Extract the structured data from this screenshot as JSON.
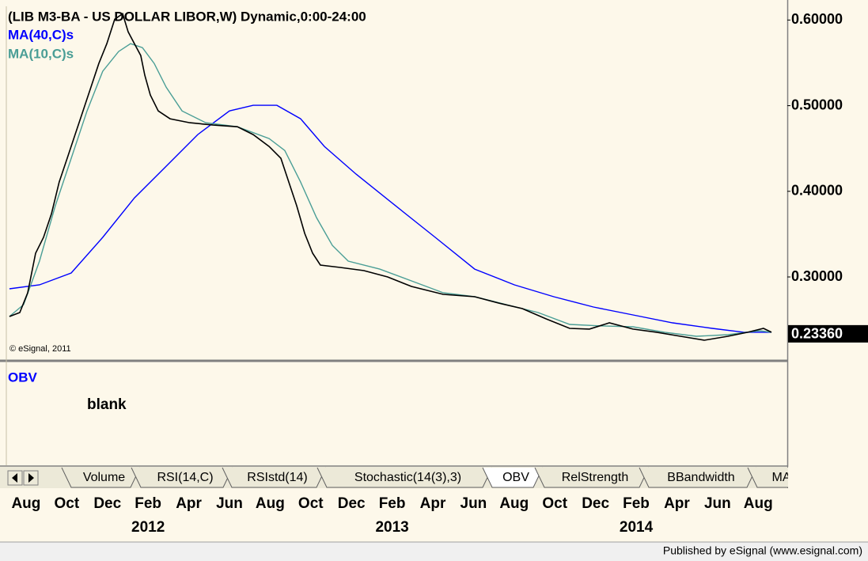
{
  "chart_data": {
    "type": "line",
    "title": "(LIB M3-BA - US DOLLAR LIBOR,W) Dynamic,0:00-24:00",
    "copyright": "© eSignal, 2011",
    "xlim": [
      -0.97,
      37.43
    ],
    "ylim": [
      0.203,
      0.616
    ],
    "xticks": [
      {
        "value": 0,
        "label": "Aug"
      },
      {
        "value": 2,
        "label": "Oct"
      },
      {
        "value": 4,
        "label": "Dec"
      },
      {
        "value": 6,
        "label": "Feb"
      },
      {
        "value": 8,
        "label": "Apr"
      },
      {
        "value": 10,
        "label": "Jun"
      },
      {
        "value": 12,
        "label": "Aug"
      },
      {
        "value": 14,
        "label": "Oct"
      },
      {
        "value": 16,
        "label": "Dec"
      },
      {
        "value": 18,
        "label": "Feb"
      },
      {
        "value": 20,
        "label": "Apr"
      },
      {
        "value": 22,
        "label": "Jun"
      },
      {
        "value": 24,
        "label": "Aug"
      },
      {
        "value": 26,
        "label": "Oct"
      },
      {
        "value": 28,
        "label": "Dec"
      },
      {
        "value": 30,
        "label": "Feb"
      },
      {
        "value": 32,
        "label": "Apr"
      },
      {
        "value": 34,
        "label": "Jun"
      },
      {
        "value": 36,
        "label": "Aug"
      }
    ],
    "year_ticks": [
      {
        "value": 6,
        "label": "2012"
      },
      {
        "value": 18,
        "label": "2013"
      },
      {
        "value": 30,
        "label": "2014"
      }
    ],
    "yticks": [
      {
        "value": 0.6,
        "label": "0.60000"
      },
      {
        "value": 0.5,
        "label": "0.50000"
      },
      {
        "value": 0.4,
        "label": "0.40000"
      },
      {
        "value": 0.3,
        "label": "0.30000"
      }
    ],
    "last_value": {
      "value": 0.2336,
      "label": "0.23360"
    },
    "grid": false,
    "series": [
      {
        "color": "#000000",
        "x": [
          -0.82,
          -0.31,
          0.08,
          0.47,
          0.86,
          1.25,
          1.63,
          2.02,
          2.41,
          2.8,
          3.19,
          3.58,
          3.97,
          4.36,
          4.75,
          5.02,
          5.33,
          5.64,
          5.84,
          6.11,
          6.5,
          7.08,
          8.05,
          9.22,
          10.39,
          11.17,
          11.95,
          12.53,
          12.92,
          13.31,
          13.7,
          14.09,
          14.47,
          15.45,
          16.61,
          17.78,
          18.95,
          20.51,
          22.06,
          23.23,
          24.4,
          25.56,
          26.73,
          27.7,
          28.68,
          29.84,
          31.01,
          32.18,
          33.35,
          34.51,
          35.49,
          36.26,
          36.65
        ],
        "values": [
          0.2538,
          0.2584,
          0.2815,
          0.3277,
          0.3462,
          0.3739,
          0.4108,
          0.4385,
          0.4662,
          0.4939,
          0.5216,
          0.5493,
          0.5724,
          0.6009,
          0.6073,
          0.5862,
          0.5724,
          0.5585,
          0.5355,
          0.5124,
          0.4939,
          0.4847,
          0.4801,
          0.4773,
          0.4754,
          0.4662,
          0.4524,
          0.4385,
          0.4108,
          0.3831,
          0.3508,
          0.3277,
          0.3139,
          0.3111,
          0.3074,
          0.3,
          0.2889,
          0.2797,
          0.2769,
          0.2695,
          0.2631,
          0.2511,
          0.24,
          0.2391,
          0.2464,
          0.2391,
          0.2354,
          0.2307,
          0.2261,
          0.2307,
          0.2354,
          0.24,
          0.2354
        ]
      },
      {
        "name": "MA(40,C)s",
        "color": "#0000ff",
        "x": [
          -0.82,
          0.66,
          2.22,
          3.77,
          5.33,
          6.89,
          8.44,
          10.0,
          11.17,
          12.33,
          13.5,
          14.67,
          16.23,
          18.17,
          20.12,
          22.06,
          24.01,
          25.95,
          27.9,
          29.84,
          31.79,
          33.74,
          35.29,
          36.65
        ],
        "values": [
          0.2862,
          0.2908,
          0.3046,
          0.3462,
          0.3923,
          0.4293,
          0.4662,
          0.4939,
          0.5004,
          0.5004,
          0.4847,
          0.4524,
          0.42,
          0.3831,
          0.3462,
          0.3092,
          0.2908,
          0.2769,
          0.2649,
          0.2557,
          0.2464,
          0.24,
          0.2354,
          0.2354
        ]
      },
      {
        "name": "MA(10,C)s",
        "color": "#4a9e96",
        "x": [
          -0.82,
          -0.12,
          0.66,
          1.44,
          2.22,
          3.0,
          3.77,
          4.55,
          5.14,
          5.72,
          6.3,
          6.89,
          7.67,
          8.83,
          10.39,
          11.95,
          12.72,
          13.5,
          14.28,
          15.06,
          15.84,
          17.39,
          18.95,
          20.51,
          22.06,
          23.62,
          25.18,
          26.73,
          28.29,
          29.84,
          31.4,
          32.96,
          34.51,
          36.07,
          36.65
        ],
        "values": [
          0.2538,
          0.2677,
          0.3185,
          0.3831,
          0.4385,
          0.4939,
          0.5401,
          0.5632,
          0.5724,
          0.5678,
          0.5493,
          0.5216,
          0.4939,
          0.4801,
          0.4754,
          0.4616,
          0.4477,
          0.4108,
          0.3693,
          0.3369,
          0.3185,
          0.3092,
          0.2954,
          0.2815,
          0.2769,
          0.2677,
          0.2584,
          0.2446,
          0.2428,
          0.2418,
          0.2354,
          0.2307,
          0.2326,
          0.2372,
          0.2354
        ]
      }
    ]
  },
  "lower_pane": {
    "title": "OBV",
    "note": "blank"
  },
  "tabs": [
    "Volume",
    "RSI(14,C)",
    "RSIstd(14)",
    "Stochastic(14(3),3)",
    "OBV",
    "RelStrength",
    "BBandwidth",
    "MA"
  ],
  "selected_tab": "OBV",
  "footer": "Published by eSignal (www.esignal.com)"
}
